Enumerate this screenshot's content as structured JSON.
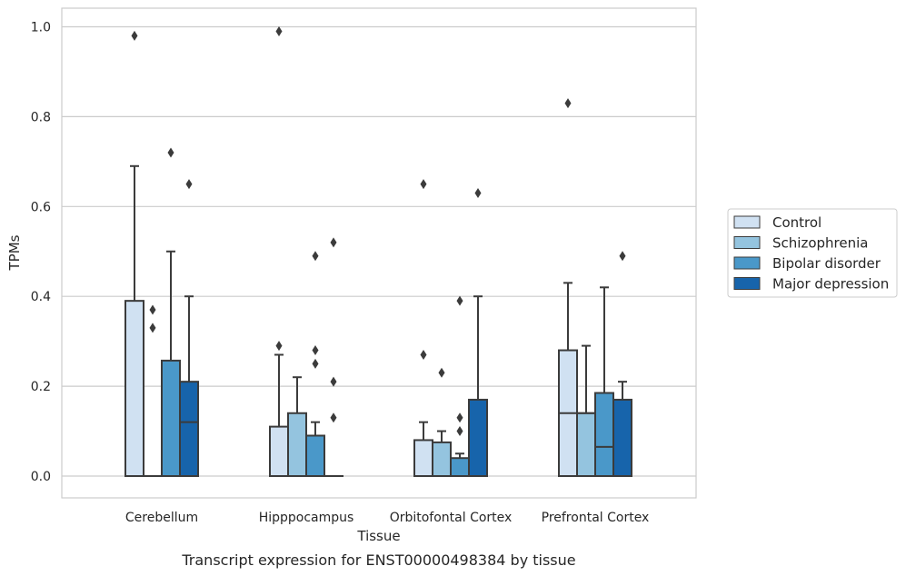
{
  "caption": "Transcript expression for ENST00000498384 by tissue",
  "chart_data": {
    "type": "box",
    "xlabel": "Tissue",
    "ylabel": "TPMs",
    "ylim": [
      -0.05,
      1.04
    ],
    "yticks": [
      0.0,
      0.2,
      0.4,
      0.6,
      0.8,
      1.0
    ],
    "ytick_labels": [
      "0.0",
      "0.2",
      "0.4",
      "0.6",
      "0.8",
      "1.0"
    ],
    "grid": "horizontal",
    "legend_placement": "right",
    "categories": [
      "Cerebellum",
      "Hipppocampus",
      "Orbitofontal Cortex",
      "Prefrontal Cortex"
    ],
    "series": [
      {
        "name": "Control",
        "color": "#d0e1f2",
        "boxes": [
          {
            "q1": 0.0,
            "median": 0.0,
            "q3": 0.39,
            "whisker_low": 0.0,
            "whisker_high": 0.69,
            "outliers": [
              0.98
            ]
          },
          {
            "q1": 0.0,
            "median": 0.0,
            "q3": 0.11,
            "whisker_low": 0.0,
            "whisker_high": 0.27,
            "outliers": [
              0.29,
              0.99
            ]
          },
          {
            "q1": 0.0,
            "median": 0.0,
            "q3": 0.08,
            "whisker_low": 0.0,
            "whisker_high": 0.12,
            "outliers": [
              0.27,
              0.65
            ]
          },
          {
            "q1": 0.0,
            "median": 0.14,
            "q3": 0.28,
            "whisker_low": 0.0,
            "whisker_high": 0.43,
            "outliers": [
              0.83
            ]
          }
        ]
      },
      {
        "name": "Schizophrenia",
        "color": "#94c4df",
        "boxes": [
          {
            "q1": 0.0,
            "median": 0.0,
            "q3": 0.0,
            "whisker_low": 0.0,
            "whisker_high": 0.0,
            "outliers": [
              0.33,
              0.37
            ]
          },
          {
            "q1": 0.0,
            "median": 0.0,
            "q3": 0.14,
            "whisker_low": 0.0,
            "whisker_high": 0.22,
            "outliers": []
          },
          {
            "q1": 0.0,
            "median": 0.0,
            "q3": 0.075,
            "whisker_low": 0.0,
            "whisker_high": 0.1,
            "outliers": [
              0.23
            ]
          },
          {
            "q1": 0.0,
            "median": 0.14,
            "q3": 0.14,
            "whisker_low": 0.0,
            "whisker_high": 0.29,
            "outliers": []
          }
        ]
      },
      {
        "name": "Bipolar disorder",
        "color": "#4a98c9",
        "boxes": [
          {
            "q1": 0.0,
            "median": 0.0,
            "q3": 0.257,
            "whisker_low": 0.0,
            "whisker_high": 0.5,
            "outliers": [
              0.72
            ]
          },
          {
            "q1": 0.0,
            "median": 0.0,
            "q3": 0.09,
            "whisker_low": 0.0,
            "whisker_high": 0.12,
            "outliers": [
              0.25,
              0.28,
              0.49
            ]
          },
          {
            "q1": 0.0,
            "median": 0.0,
            "q3": 0.04,
            "whisker_low": 0.0,
            "whisker_high": 0.05,
            "outliers": [
              0.1,
              0.13,
              0.39
            ]
          },
          {
            "q1": 0.0,
            "median": 0.065,
            "q3": 0.185,
            "whisker_low": 0.0,
            "whisker_high": 0.42,
            "outliers": []
          }
        ]
      },
      {
        "name": "Major depression",
        "color": "#1764ab",
        "boxes": [
          {
            "q1": 0.0,
            "median": 0.12,
            "q3": 0.21,
            "whisker_low": 0.0,
            "whisker_high": 0.4,
            "outliers": [
              0.65
            ]
          },
          {
            "q1": 0.0,
            "median": 0.0,
            "q3": 0.0,
            "whisker_low": 0.0,
            "whisker_high": 0.0,
            "outliers": [
              0.13,
              0.21,
              0.52
            ]
          },
          {
            "q1": 0.0,
            "median": 0.0,
            "q3": 0.17,
            "whisker_low": 0.0,
            "whisker_high": 0.4,
            "outliers": [
              0.63
            ]
          },
          {
            "q1": 0.0,
            "median": 0.0,
            "q3": 0.17,
            "whisker_low": 0.0,
            "whisker_high": 0.21,
            "outliers": [
              0.49
            ]
          }
        ]
      }
    ]
  }
}
